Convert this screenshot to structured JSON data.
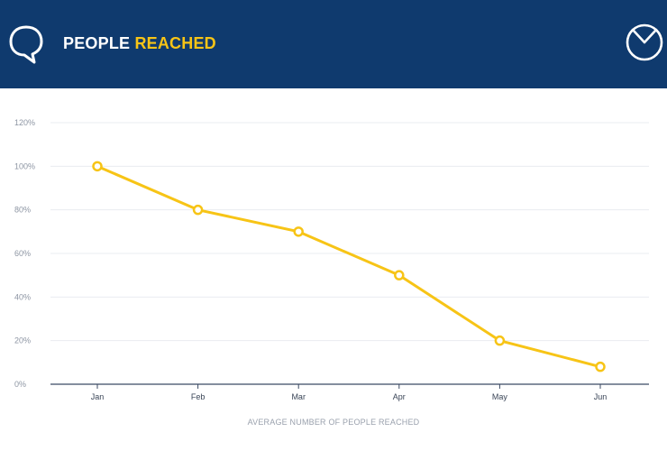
{
  "header": {
    "title_white": "PEOPLE",
    "title_accent": "REACHED",
    "left_icon": "chat-bubble-icon",
    "right_icon": "pie-chart-icon",
    "background_color": "#0f3a6e",
    "accent_color": "#f7c416"
  },
  "chart_data": {
    "type": "line",
    "title": "PEOPLE REACHED",
    "xlabel": "AVERAGE NUMBER OF PEOPLE REACHED",
    "ylabel": "",
    "categories": [
      "Jan",
      "Feb",
      "Mar",
      "Apr",
      "May",
      "Jun"
    ],
    "series": [
      {
        "values": [
          100,
          80,
          70,
          50,
          20,
          8
        ],
        "color": "#f7c416"
      }
    ],
    "y_ticks": [
      "0%",
      "20%",
      "40%",
      "60%",
      "80%",
      "100%",
      "120%"
    ],
    "ylim": [
      0,
      120
    ],
    "grid": true,
    "legend": "none"
  }
}
